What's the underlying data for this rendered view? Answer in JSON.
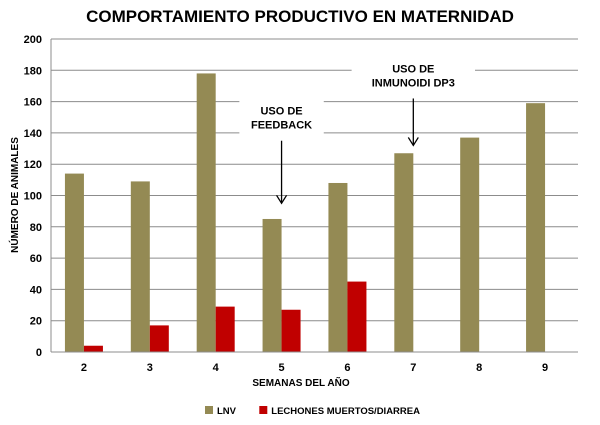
{
  "chart_data": {
    "type": "bar",
    "title": "COMPORTAMIENTO PRODUCTIVO EN MATERNIDAD",
    "xlabel": "SEMANAS DEL AÑO",
    "ylabel": "NÚMERO DE ANIMALES",
    "categories": [
      "2",
      "3",
      "4",
      "5",
      "6",
      "7",
      "8",
      "9"
    ],
    "ylim": [
      0,
      200
    ],
    "yticks": [
      0,
      20,
      40,
      60,
      80,
      100,
      120,
      140,
      160,
      180,
      200
    ],
    "grid": true,
    "legend_position": "bottom",
    "series": [
      {
        "name": "LNV",
        "color": "#948A54",
        "values": [
          114,
          109,
          178,
          85,
          108,
          127,
          137,
          159
        ]
      },
      {
        "name": "LECHONES MUERTOS/DIARREA",
        "color": "#C00000",
        "values": [
          4,
          17,
          29,
          27,
          45,
          null,
          null,
          null
        ]
      }
    ],
    "annotations": [
      {
        "lines": [
          "USO DE",
          "FEEDBACK"
        ],
        "category": "5",
        "arrow_from": 135,
        "arrow_to": 95
      },
      {
        "lines": [
          "USO DE",
          "INMUNOIDI DP3"
        ],
        "category": "7",
        "arrow_from": 162,
        "arrow_to": 132
      }
    ]
  }
}
